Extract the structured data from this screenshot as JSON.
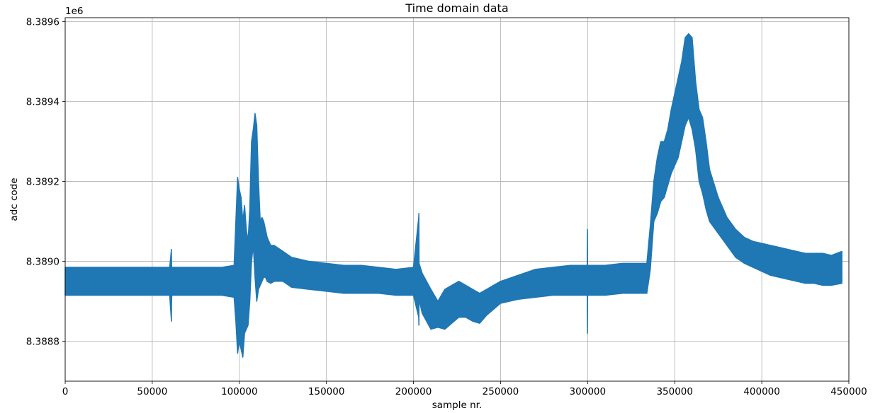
{
  "chart_data": {
    "type": "line",
    "title": "Time domain data",
    "xlabel": "sample nr.",
    "ylabel": "adc code",
    "y_offset_label": "1e6",
    "xlim": [
      0,
      450000
    ],
    "ylim": [
      8388700,
      8389610
    ],
    "x_ticks": [
      0,
      50000,
      100000,
      150000,
      200000,
      250000,
      300000,
      350000,
      400000,
      450000
    ],
    "x_tick_labels": [
      "0",
      "50000",
      "100000",
      "150000",
      "200000",
      "250000",
      "300000",
      "350000",
      "400000",
      "450000"
    ],
    "y_ticks": [
      8388800,
      8389000,
      8389200,
      8389400,
      8389600
    ],
    "y_tick_labels": [
      "8.3888",
      "8.3890",
      "8.3892",
      "8.3894",
      "8.3896"
    ],
    "grid": true,
    "series": [
      {
        "color": "#1f77b4",
        "x": [
          0,
          10000,
          20000,
          30000,
          40000,
          50000,
          60000,
          61000,
          61100,
          61200,
          70000,
          80000,
          90000,
          97000,
          98000,
          99000,
          100000,
          101000,
          102000,
          103000,
          104000,
          105000,
          106000,
          107000,
          108000,
          109000,
          110000,
          111000,
          112000,
          113000,
          114000,
          115000,
          116000,
          118000,
          120000,
          125000,
          130000,
          140000,
          150000,
          160000,
          170000,
          180000,
          190000,
          200000,
          203000,
          203100,
          203200,
          205000,
          210000,
          214000,
          218000,
          222000,
          226000,
          230000,
          234000,
          238000,
          242000,
          246000,
          250000,
          260000,
          270000,
          280000,
          290000,
          299800,
          299900,
          300000,
          310000,
          320000,
          330000,
          334000,
          336000,
          338000,
          340000,
          342000,
          344000,
          346000,
          348000,
          350000,
          352000,
          354000,
          356000,
          358000,
          360000,
          362000,
          364000,
          366000,
          368000,
          370000,
          375000,
          380000,
          385000,
          390000,
          395000,
          400000,
          405000,
          410000,
          415000,
          420000,
          425000,
          430000,
          435000,
          440000,
          446000
        ],
        "y_max": [
          8388985,
          8388985,
          8388985,
          8388985,
          8388985,
          8388985,
          8388985,
          8389030,
          8388990,
          8388985,
          8388985,
          8388985,
          8388985,
          8388990,
          8389100,
          8389210,
          8389180,
          8389160,
          8389100,
          8389140,
          8389080,
          8389050,
          8389130,
          8389300,
          8389330,
          8389370,
          8389340,
          8389200,
          8389100,
          8389110,
          8389100,
          8389080,
          8389060,
          8389040,
          8389040,
          8389025,
          8389010,
          8389000,
          8388995,
          8388990,
          8388990,
          8388985,
          8388980,
          8388985,
          8389110,
          8389120,
          8388995,
          8388970,
          8388930,
          8388900,
          8388930,
          8388940,
          8388950,
          8388940,
          8388930,
          8388920,
          8388930,
          8388940,
          8388950,
          8388965,
          8388980,
          8388985,
          8388990,
          8388990,
          8389080,
          8388990,
          8388990,
          8388995,
          8388995,
          8388995,
          8389090,
          8389200,
          8389260,
          8389300,
          8389300,
          8389330,
          8389380,
          8389420,
          8389460,
          8389500,
          8389560,
          8389570,
          8389560,
          8389450,
          8389380,
          8389360,
          8389300,
          8389230,
          8389160,
          8389110,
          8389080,
          8389060,
          8389050,
          8389045,
          8389040,
          8389035,
          8389030,
          8389025,
          8389020,
          8389020,
          8389020,
          8389015,
          8389025
        ],
        "y_min": [
          8388915,
          8388915,
          8388915,
          8388915,
          8388915,
          8388915,
          8388915,
          8388850,
          8388900,
          8388915,
          8388915,
          8388915,
          8388915,
          8388910,
          8388850,
          8388770,
          8388800,
          8388780,
          8388760,
          8388820,
          8388830,
          8388840,
          8388900,
          8389000,
          8389040,
          8388960,
          8388900,
          8388930,
          8388940,
          8388950,
          8388960,
          8388960,
          8388950,
          8388945,
          8388950,
          8388950,
          8388935,
          8388930,
          8388925,
          8388920,
          8388920,
          8388920,
          8388915,
          8388915,
          8388860,
          8388840,
          8388905,
          8388870,
          8388830,
          8388835,
          8388830,
          8388845,
          8388860,
          8388860,
          8388850,
          8388845,
          8388865,
          8388880,
          8388895,
          8388905,
          8388910,
          8388915,
          8388915,
          8388915,
          8388820,
          8388915,
          8388915,
          8388920,
          8388920,
          8388920,
          8388980,
          8389100,
          8389120,
          8389150,
          8389160,
          8389190,
          8389220,
          8389240,
          8389260,
          8389300,
          8389340,
          8389360,
          8389330,
          8389280,
          8389200,
          8389170,
          8389130,
          8389100,
          8389070,
          8389040,
          8389010,
          8388995,
          8388985,
          8388975,
          8388965,
          8388960,
          8388955,
          8388950,
          8388945,
          8388945,
          8388940,
          8388940,
          8388945
        ]
      }
    ]
  }
}
